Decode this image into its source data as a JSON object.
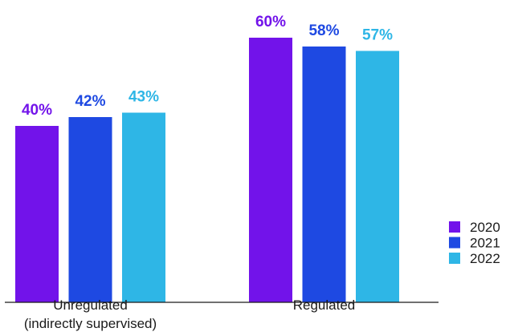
{
  "chart_data": {
    "type": "bar",
    "categories": [
      [
        "Unregulated",
        "(indirectly supervised)"
      ],
      [
        "Regulated"
      ]
    ],
    "series": [
      {
        "name": "2020",
        "color": "#7213EA",
        "values": [
          40,
          60
        ]
      },
      {
        "name": "2021",
        "color": "#1E49E2",
        "values": [
          42,
          58
        ]
      },
      {
        "name": "2022",
        "color": "#2EB6E6",
        "values": [
          43,
          57
        ]
      }
    ],
    "value_suffix": "%",
    "legend_position": "bottom-right",
    "grid": false,
    "ylim": [
      0,
      65
    ]
  }
}
